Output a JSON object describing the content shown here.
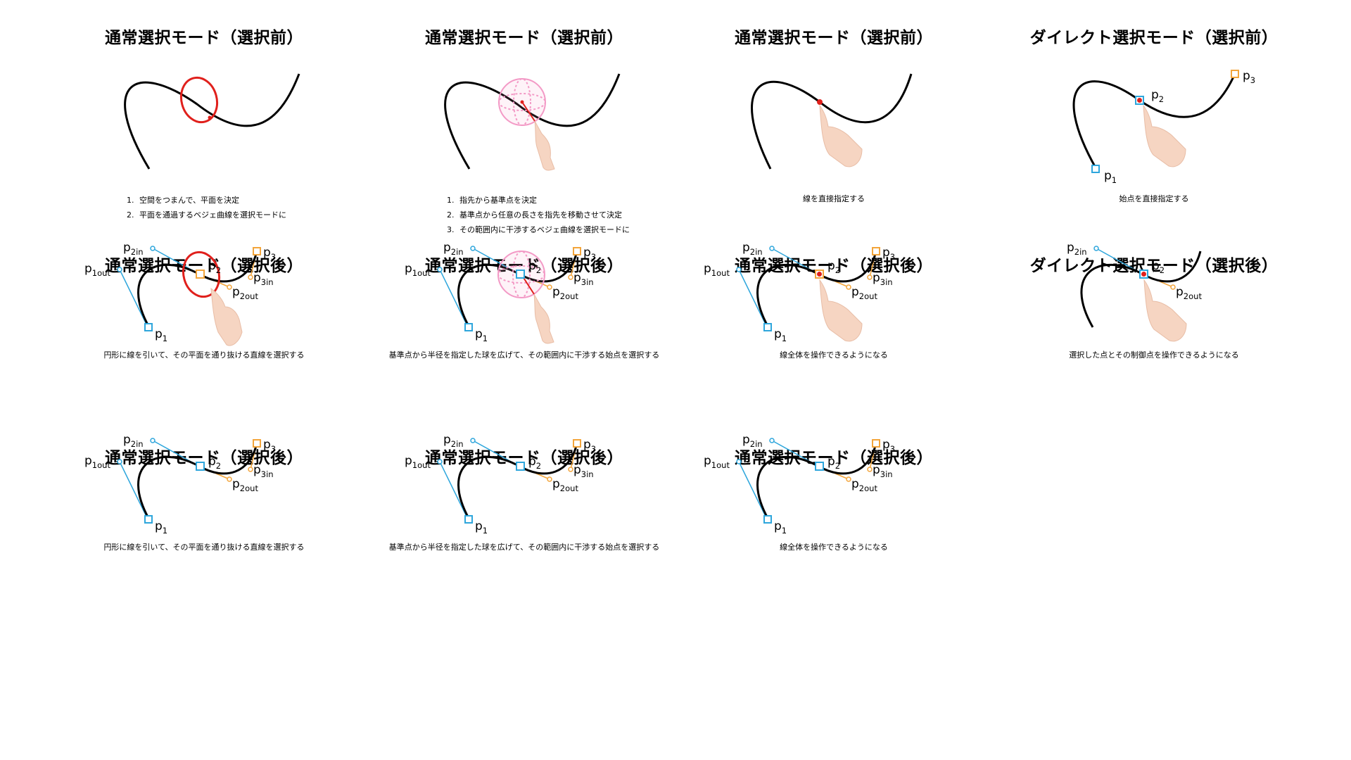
{
  "panels": [
    {
      "id": "r1c1",
      "title": "通常選択モード（選択前）",
      "steps": [
        {
          "num": "1.",
          "text": "空間をつまんで、平面を決定"
        },
        {
          "num": "2.",
          "text": "平面を通過するベジェ曲線を選択モードに"
        }
      ]
    },
    {
      "id": "r1c2",
      "title": "通常選択モード（選択前）",
      "steps": [
        {
          "num": "1.",
          "text": "指先から基準点を決定"
        },
        {
          "num": "2.",
          "text": "基準点から任意の長さを指先を移動させて決定"
        },
        {
          "num": "3.",
          "text": "その範囲内に干渉するベジェ曲線を選択モードに"
        }
      ]
    },
    {
      "id": "r1c3",
      "title": "通常選択モード（選択前）",
      "caption": "線を直接指定する"
    },
    {
      "id": "r1c4",
      "title": "ダイレクト選択モード（選択前）",
      "caption": "始点を直接指定する"
    },
    {
      "id": "r2c1",
      "title": "通常選択モード（選択後）",
      "caption": "円形に線を引いて、その平面を通り抜ける直線を選択する"
    },
    {
      "id": "r2c2",
      "title": "通常選択モード（選択後）",
      "caption": "基準点から半径を指定した球を広げて、その範囲内に干渉する始点を選択する"
    },
    {
      "id": "r2c3",
      "title": "通常選択モード（選択後）",
      "caption": "線全体を操作できるようになる"
    },
    {
      "id": "r2c4",
      "title": "ダイレクト選択モード（選択後）",
      "caption": "選択した点とその制御点を操作できるようになる"
    },
    {
      "id": "r3c1",
      "title": "通常選択モード（選択後）",
      "caption": "円形に線を引いて、その平面を通り抜ける直線を選択する"
    },
    {
      "id": "r3c2",
      "title": "通常選択モード（選択後）",
      "caption": "基準点から半径を指定した球を広げて、その範囲内に干渉する始点を選択する"
    },
    {
      "id": "r3c3",
      "title": "通常選択モード（選択後）",
      "caption": "線全体を操作できるようになる"
    }
  ],
  "labels": {
    "p": "p",
    "sub_1": "1",
    "sub_2": "2",
    "sub_3": "3",
    "sub_1out": "1out",
    "sub_2in": "2in",
    "sub_2out": "2out",
    "sub_3in": "3in"
  },
  "colors": {
    "curve": "#000000",
    "selection_ring": "#e0201c",
    "sphere": "#f39ac6",
    "anchor_blue": "#2ea6dc",
    "anchor_orange": "#f3a53b",
    "point_red": "#e0201c",
    "hand_skin": "#f6d5c2"
  },
  "icons": [
    "hand-pinch-icon",
    "hand-point-icon",
    "anchor-square-icon",
    "control-handle-icon"
  ]
}
